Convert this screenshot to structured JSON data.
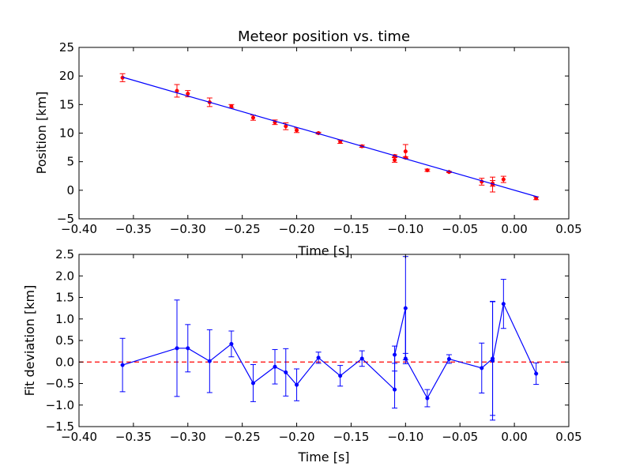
{
  "chart_data": [
    {
      "type": "scatter",
      "title": "Meteor position vs. time",
      "xlabel": "Time [s]",
      "ylabel": "Position [km]",
      "xlim": [
        -0.4,
        0.05
      ],
      "ylim": [
        -5,
        25
      ],
      "xticks": [
        -0.4,
        -0.35,
        -0.3,
        -0.25,
        -0.2,
        -0.15,
        -0.1,
        -0.05,
        0.0,
        0.05
      ],
      "xtick_labels": [
        "−0.40",
        "−0.35",
        "−0.30",
        "−0.25",
        "−0.20",
        "−0.15",
        "−0.10",
        "−0.05",
        "0.00",
        "0.05"
      ],
      "yticks": [
        -5,
        0,
        5,
        10,
        15,
        20,
        25
      ],
      "ytick_labels": [
        "−5",
        "0",
        "5",
        "10",
        "15",
        "20",
        "25"
      ],
      "grid": false,
      "series": [
        {
          "kind": "points-with-errorbars",
          "color": "#ff0000",
          "x": [
            -0.36,
            -0.31,
            -0.3,
            -0.28,
            -0.26,
            -0.24,
            -0.22,
            -0.21,
            -0.2,
            -0.18,
            -0.16,
            -0.14,
            -0.11,
            -0.11,
            -0.1,
            -0.1,
            -0.08,
            -0.06,
            -0.03,
            -0.02,
            -0.02,
            -0.01,
            0.02
          ],
          "y": [
            19.7,
            17.4,
            16.9,
            15.4,
            14.7,
            12.7,
            11.9,
            11.2,
            10.5,
            10.0,
            8.5,
            7.7,
            6.0,
            5.3,
            6.8,
            5.7,
            3.5,
            3.2,
            1.5,
            1.2,
            1.0,
            1.9,
            -1.4
          ],
          "err": [
            0.7,
            1.1,
            0.55,
            0.75,
            0.3,
            0.45,
            0.4,
            0.6,
            0.4,
            0.15,
            0.3,
            0.2,
            0.2,
            0.4,
            1.2,
            0.15,
            0.2,
            0.1,
            0.6,
            0.5,
            1.3,
            0.55,
            0.25
          ]
        },
        {
          "kind": "fit-line",
          "color": "#0000ff",
          "x": [
            -0.36,
            0.022
          ],
          "y": [
            19.8,
            -1.2
          ]
        }
      ]
    },
    {
      "type": "line",
      "xlabel": "Time [s]",
      "ylabel": "Fit deviation [km]",
      "xlim": [
        -0.4,
        0.05
      ],
      "ylim": [
        -1.5,
        2.5
      ],
      "xticks": [
        -0.4,
        -0.35,
        -0.3,
        -0.25,
        -0.2,
        -0.15,
        -0.1,
        -0.05,
        0.0,
        0.05
      ],
      "xtick_labels": [
        "−0.40",
        "−0.35",
        "−0.30",
        "−0.25",
        "−0.20",
        "−0.15",
        "−0.10",
        "−0.05",
        "0.00",
        "0.05"
      ],
      "yticks": [
        -1.5,
        -1.0,
        -0.5,
        0.0,
        0.5,
        1.0,
        1.5,
        2.0,
        2.5
      ],
      "ytick_labels": [
        "−1.5",
        "−1.0",
        "−0.5",
        "0.0",
        "0.5",
        "1.0",
        "1.5",
        "2.0",
        "2.5"
      ],
      "grid": false,
      "zero_line": {
        "y": 0,
        "color": "#ff0000",
        "style": "dashed"
      },
      "series": [
        {
          "kind": "line-with-errorbars",
          "color": "#0000ff",
          "x": [
            -0.36,
            -0.31,
            -0.3,
            -0.28,
            -0.26,
            -0.24,
            -0.22,
            -0.21,
            -0.2,
            -0.18,
            -0.16,
            -0.14,
            -0.11,
            -0.11,
            -0.1,
            -0.1,
            -0.08,
            -0.06,
            -0.03,
            -0.02,
            -0.02,
            -0.01,
            0.02
          ],
          "y": [
            -0.07,
            0.32,
            0.32,
            0.02,
            0.42,
            -0.49,
            -0.11,
            -0.24,
            -0.53,
            0.1,
            -0.32,
            0.08,
            -0.64,
            0.17,
            1.25,
            0.08,
            -0.84,
            0.07,
            -0.14,
            0.08,
            0.03,
            1.35,
            -0.27
          ],
          "err": [
            0.62,
            1.12,
            0.55,
            0.73,
            0.3,
            0.43,
            0.4,
            0.55,
            0.37,
            0.13,
            0.24,
            0.18,
            0.43,
            0.2,
            1.2,
            0.12,
            0.2,
            0.1,
            0.58,
            1.32,
            1.38,
            0.57,
            0.25
          ]
        }
      ]
    }
  ]
}
